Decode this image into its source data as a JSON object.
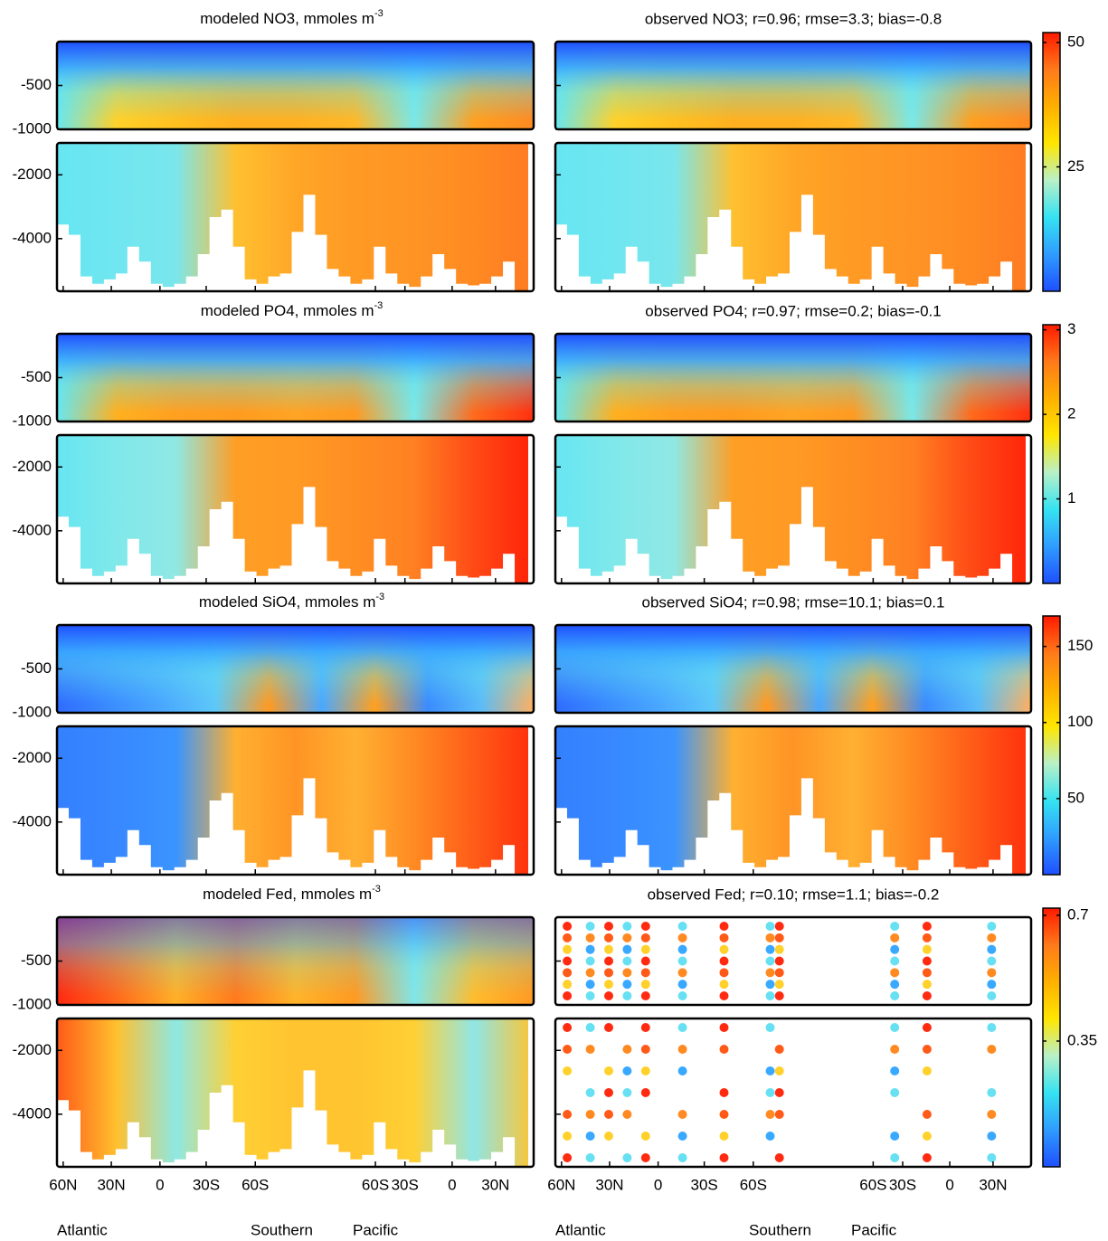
{
  "chart_data": [
    {
      "type": "heatmap",
      "title_left": "modeled NO3, mmoles m",
      "title_left_sup": "-3",
      "title_right": "observed NO3; r=0.96; rmse=3.3; bias=-0.8",
      "colorbar": {
        "lim": [
          0,
          52
        ],
        "ticks": [
          25,
          50
        ]
      }
    },
    {
      "type": "heatmap",
      "title_left": "modeled PO4, mmoles m",
      "title_left_sup": "-3",
      "title_right": "observed PO4; r=0.97; rmse=0.2; bias=-0.1",
      "colorbar": {
        "lim": [
          0,
          3.06
        ],
        "ticks": [
          1,
          2,
          3
        ]
      }
    },
    {
      "type": "heatmap",
      "title_left": "modeled SiO4, mmoles m",
      "title_left_sup": "-3",
      "title_right": "observed SiO4; r=0.98; rmse=10.1; bias=0.1",
      "colorbar": {
        "lim": [
          0,
          170
        ],
        "ticks": [
          50,
          100,
          150
        ]
      }
    },
    {
      "type": "heatmap",
      "title_left": "modeled Fed, mmoles m",
      "title_left_sup": "-3",
      "title_right": "observed Fed; r=0.10; rmse=1.1; bias=-0.2",
      "colorbar": {
        "lim": [
          0,
          0.72
        ],
        "ticks": [
          0.35,
          0.7
        ]
      }
    }
  ],
  "depth_axis": {
    "upper": {
      "ylim": [
        0,
        -1000
      ],
      "yticks": [
        -500,
        -1000
      ]
    },
    "lower": {
      "ylim": [
        -1000,
        -5650
      ],
      "yticks": [
        -2000,
        -4000
      ]
    }
  },
  "section_axis": {
    "categories": [
      "60N",
      "30N",
      "0",
      "30S",
      "60S",
      "60S",
      "30S",
      "0",
      "30N"
    ],
    "basins": [
      "Atlantic",
      "Southern",
      "Pacific"
    ]
  }
}
